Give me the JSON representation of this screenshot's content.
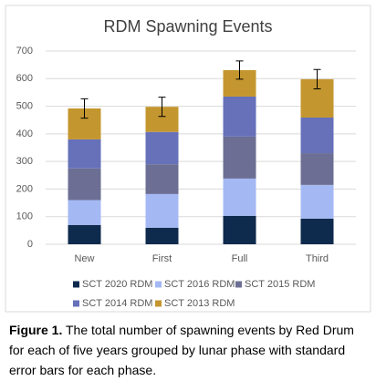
{
  "chart_data": {
    "type": "stacked-bar",
    "title": "RDM Spawning Events",
    "categories": [
      "New",
      "First",
      "Full",
      "Third"
    ],
    "series": [
      {
        "name": "SCT 2020 RDM",
        "color": "#0e2a4d",
        "values": [
          70,
          60,
          103,
          93
        ]
      },
      {
        "name": "SCT 2016 RDM",
        "color": "#a4b8f4",
        "values": [
          90,
          122,
          135,
          122
        ]
      },
      {
        "name": "SCT 2015 RDM",
        "color": "#6c6f93",
        "values": [
          115,
          108,
          152,
          115
        ]
      },
      {
        "name": "SCT 2014 RDM",
        "color": "#6671b9",
        "values": [
          105,
          117,
          145,
          129
        ]
      },
      {
        "name": "SCT 2013 RDM",
        "color": "#c4962f",
        "values": [
          112,
          91,
          96,
          139
        ]
      }
    ],
    "errors": [
      35,
      35,
      33,
      35
    ],
    "ylim": [
      0,
      700
    ],
    "yticks": [
      0,
      100,
      200,
      300,
      400,
      500,
      600,
      700
    ],
    "grid": true
  },
  "caption": {
    "label": "Figure 1.",
    "text": "The total number of spawning events by Red Drum for each of five years grouped by lunar phase with standard error bars for each phase."
  }
}
